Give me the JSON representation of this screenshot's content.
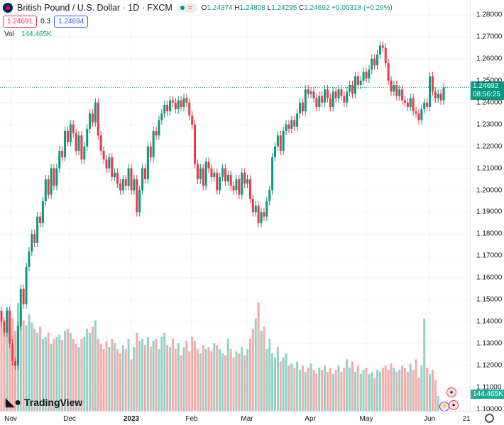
{
  "header": {
    "symbol": "British Pound / U.S. Dollar · 1D · FXCM",
    "open_label": "O",
    "open": "1.24374",
    "high_label": "H",
    "high": "1.24808",
    "low_label": "L",
    "low": "1.24295",
    "close_label": "C",
    "close": "1.24692",
    "change": "+0.00318 (+0.26%)",
    "sell": "1.24691",
    "spread": "0.3",
    "buy": "1.24694"
  },
  "volume": {
    "label": "Vol",
    "value": "144.465K"
  },
  "price_axis": {
    "labels": [
      "1.28000",
      "1.27000",
      "1.26000",
      "1.25000",
      "1.24000",
      "1.23000",
      "1.22000",
      "1.21000",
      "1.20000",
      "1.19000",
      "1.18000",
      "1.17000",
      "1.16000",
      "1.15000",
      "1.14000",
      "1.13000",
      "1.12000",
      "1.11000",
      "1.10000"
    ],
    "current": "1.24692",
    "countdown": "08:56:25",
    "volume_current": "144.465K"
  },
  "time_axis": [
    "Nov",
    "Dec",
    "2023",
    "Feb",
    "Mar",
    "Apr",
    "May",
    "Jun",
    "21"
  ],
  "logo": "TradingView",
  "colors": {
    "up": "#089981",
    "down": "#f23645",
    "vol_up": "#8fd3c7",
    "vol_down": "#f7a9a7"
  },
  "chart_data": {
    "type": "candlestick",
    "ylim": [
      1.1,
      1.28
    ],
    "first_open": 1.145,
    "closes": [
      1.14,
      1.135,
      1.145,
      1.13,
      1.122,
      1.12,
      1.138,
      1.155,
      1.148,
      1.165,
      1.172,
      1.18,
      1.176,
      1.188,
      1.185,
      1.195,
      1.205,
      1.198,
      1.21,
      1.202,
      1.21,
      1.218,
      1.215,
      1.227,
      1.222,
      1.23,
      1.226,
      1.218,
      1.225,
      1.214,
      1.22,
      1.228,
      1.235,
      1.231,
      1.24,
      1.225,
      1.218,
      1.214,
      1.21,
      1.215,
      1.206,
      1.208,
      1.203,
      1.2,
      1.205,
      1.202,
      1.21,
      1.2,
      1.205,
      1.19,
      1.2,
      1.21,
      1.205,
      1.22,
      1.215,
      1.227,
      1.225,
      1.232,
      1.235,
      1.239,
      1.236,
      1.241,
      1.24,
      1.237,
      1.241,
      1.238,
      1.242,
      1.24,
      1.234,
      1.23,
      1.212,
      1.205,
      1.21,
      1.202,
      1.213,
      1.21,
      1.206,
      1.208,
      1.2,
      1.206,
      1.21,
      1.204,
      1.207,
      1.202,
      1.2,
      1.205,
      1.198,
      1.208,
      1.203,
      1.205,
      1.196,
      1.19,
      1.193,
      1.185,
      1.19,
      1.188,
      1.195,
      1.2,
      1.215,
      1.22,
      1.225,
      1.218,
      1.227,
      1.23,
      1.228,
      1.232,
      1.229,
      1.235,
      1.24,
      1.236,
      1.246,
      1.244,
      1.245,
      1.242,
      1.238,
      1.243,
      1.24,
      1.246,
      1.242,
      1.238,
      1.245,
      1.242,
      1.246,
      1.243,
      1.24,
      1.245,
      1.248,
      1.244,
      1.252,
      1.248,
      1.25,
      1.254,
      1.251,
      1.255,
      1.26,
      1.257,
      1.262,
      1.266,
      1.265,
      1.258,
      1.25,
      1.245,
      1.248,
      1.243,
      1.246,
      1.241,
      1.24,
      1.238,
      1.242,
      1.236,
      1.235,
      1.232,
      1.237,
      1.24,
      1.238,
      1.252,
      1.245,
      1.242,
      1.244,
      1.241,
      1.2469
    ],
    "volumes_k": [
      950,
      880,
      1000,
      820,
      900,
      780,
      1050,
      960,
      880,
      830,
      940,
      860,
      800,
      760,
      820,
      700,
      720,
      760,
      650,
      700,
      720,
      740,
      690,
      780,
      800,
      760,
      700,
      650,
      620,
      700,
      720,
      800,
      760,
      820,
      880,
      700,
      650,
      600,
      680,
      620,
      700,
      660,
      600,
      560,
      640,
      600,
      700,
      500,
      620,
      760,
      680,
      700,
      640,
      720,
      620,
      680,
      700,
      600,
      720,
      760,
      640,
      620,
      700,
      600,
      660,
      540,
      620,
      680,
      580,
      720,
      680,
      600,
      560,
      640,
      600,
      620,
      580,
      660,
      640,
      600,
      560,
      540,
      700,
      600,
      520,
      580,
      560,
      620,
      540,
      600,
      700,
      800,
      900,
      1060,
      780,
      820,
      600,
      700,
      560,
      520,
      620,
      480,
      520,
      560,
      440,
      460,
      420,
      480,
      400,
      440,
      380,
      420,
      460,
      400,
      360,
      420,
      400,
      440,
      380,
      420,
      360,
      400,
      440,
      380,
      420,
      500,
      420,
      480,
      380,
      440,
      360,
      400,
      420,
      360,
      380,
      320,
      400,
      380,
      420,
      440,
      400,
      460,
      420,
      380,
      400,
      440,
      420,
      380,
      460,
      400,
      500,
      320,
      440,
      900,
      420,
      360,
      400,
      300,
      144
    ]
  }
}
